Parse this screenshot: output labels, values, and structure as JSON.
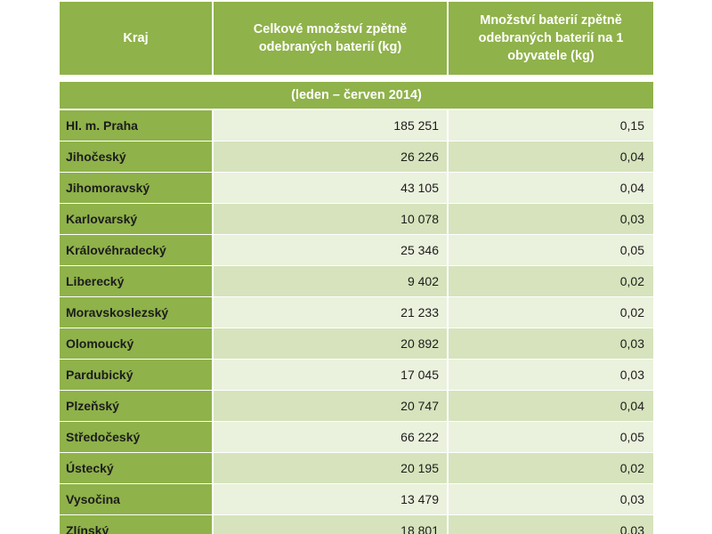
{
  "header": {
    "col_region": "Kraj",
    "col_total": "Celkové množství zpětně odebraných baterií (kg)",
    "col_per_capita": "Množství baterií zpětně odebraných baterií na 1 obyvatele (kg)"
  },
  "period": "(leden – červen 2014)",
  "colors": {
    "header_bg": "#8fb24a",
    "row_light": "#eaf1dd",
    "row_dark": "#d6e3bc"
  },
  "rows": [
    {
      "region": "Hl. m. Praha",
      "total": "185 251",
      "per_capita": "0,15"
    },
    {
      "region": "Jihočeský",
      "total": "26 226",
      "per_capita": "0,04"
    },
    {
      "region": "Jihomoravský",
      "total": "43 105",
      "per_capita": "0,04"
    },
    {
      "region": "Karlovarský",
      "total": "10 078",
      "per_capita": "0,03"
    },
    {
      "region": "Královéhradecký",
      "total": "25 346",
      "per_capita": "0,05"
    },
    {
      "region": "Liberecký",
      "total": "9 402",
      "per_capita": "0,02"
    },
    {
      "region": "Moravskoslezský",
      "total": "21 233",
      "per_capita": "0,02"
    },
    {
      "region": "Olomoucký",
      "total": "20 892",
      "per_capita": "0,03"
    },
    {
      "region": "Pardubický",
      "total": "17 045",
      "per_capita": "0,03"
    },
    {
      "region": "Plzeňský",
      "total": "20 747",
      "per_capita": "0,04"
    },
    {
      "region": "Středočeský",
      "total": "66 222",
      "per_capita": "0,05"
    },
    {
      "region": "Ústecký",
      "total": "20 195",
      "per_capita": "0,02"
    },
    {
      "region": "Vysočina",
      "total": "13 479",
      "per_capita": "0,03"
    },
    {
      "region": "Zlínský",
      "total": "18 801",
      "per_capita": "0,03"
    }
  ]
}
